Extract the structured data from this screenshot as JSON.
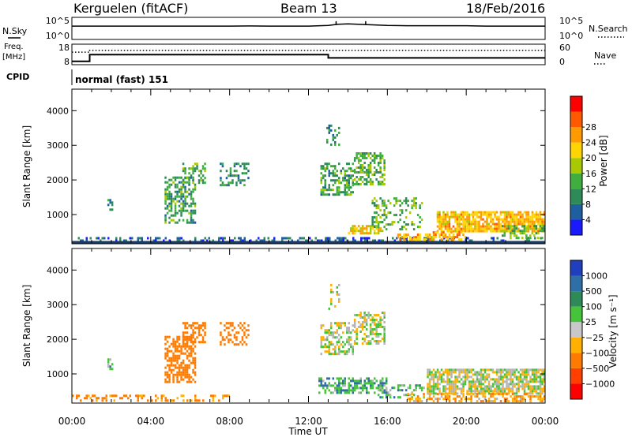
{
  "header": {
    "station": "Kerguelen (fitACF)",
    "beam": "Beam 13",
    "date": "18/Feb/2016"
  },
  "colors": {
    "power_scale": [
      "#1a1aff",
      "#1e5fa0",
      "#2e8b57",
      "#3fae3f",
      "#a8c800",
      "#ffd400",
      "#ff9a00",
      "#ff5a00",
      "#ff0000"
    ],
    "velocity_scale": [
      "#1f3fbf",
      "#2e6fa8",
      "#2e8b57",
      "#45c33a",
      "#c8c8c8",
      "#ffb000",
      "#ff7a00",
      "#ff4000",
      "#ff0000"
    ],
    "ground_scatter": "#b4b4b4"
  },
  "chart_data": [
    {
      "type": "line",
      "panel": "noise",
      "left_label": "N.Sky",
      "right_label": "N.Search",
      "left_ticks": [
        "10^5",
        "10^0"
      ],
      "right_ticks": [
        "10^5",
        "10^0"
      ],
      "series": [
        {
          "name": "N.Sky",
          "style": "solid",
          "x": [
            0,
            1,
            2,
            3,
            4,
            5,
            6,
            7,
            8,
            9,
            10,
            11,
            12,
            13,
            13.5,
            14,
            14.5,
            15,
            15.5,
            16,
            17,
            18,
            19,
            20,
            21,
            22,
            23,
            24
          ],
          "y": [
            3.1,
            3.1,
            3.1,
            3.1,
            3.1,
            3.1,
            3.1,
            3.1,
            3.1,
            3.15,
            3.1,
            3.1,
            3.1,
            3.3,
            3.6,
            3.7,
            3.6,
            3.5,
            3.4,
            3.3,
            3.2,
            3.2,
            3.2,
            3.2,
            3.1,
            3.1,
            3.1,
            3.1
          ]
        }
      ],
      "spikes_x": [
        13.4,
        14.9
      ]
    },
    {
      "type": "line",
      "panel": "frequency",
      "left_label": "Freq.",
      "left_unit": "[MHz]",
      "right_label": "Nave",
      "left_ticks": [
        18,
        8
      ],
      "right_ticks": [
        60,
        0
      ],
      "series": [
        {
          "name": "Freq",
          "style": "solid",
          "x": [
            0,
            0.9,
            0.9,
            13.0,
            13.0,
            24
          ],
          "y": [
            9.0,
            9.0,
            12.9,
            12.9,
            11.0,
            11.0
          ]
        },
        {
          "name": "Nave",
          "style": "dotted",
          "x": [
            0,
            0.9,
            0.9,
            24
          ],
          "y": [
            38,
            38,
            44,
            44
          ]
        }
      ]
    },
    {
      "type": "table",
      "panel": "cpid",
      "label": "CPID",
      "text": "normal (fast) 151"
    },
    {
      "type": "heatmap",
      "panel": "power",
      "xlabel": "",
      "ylabel": "Slant Range [km]",
      "xlim": [
        0,
        24
      ],
      "ylim": [
        180,
        4600
      ],
      "yticks": [
        1000,
        2000,
        3000,
        4000
      ],
      "colorbar_label": "Power [dB]",
      "colorbar_ticks": [
        "4",
        "8",
        "12",
        "16",
        "20",
        "24",
        "28"
      ],
      "clusters": [
        {
          "x": [
            0,
            24
          ],
          "y": [
            230,
            350
          ],
          "value": 6,
          "density": 0.35
        },
        {
          "x": [
            1.8,
            2.1
          ],
          "y": [
            1150,
            1450
          ],
          "value": 10,
          "density": 0.6
        },
        {
          "x": [
            4.7,
            6.3
          ],
          "y": [
            800,
            2100
          ],
          "value": 12,
          "density": 0.55
        },
        {
          "x": [
            5.6,
            6.8
          ],
          "y": [
            1900,
            2500
          ],
          "value": 14,
          "density": 0.45
        },
        {
          "x": [
            7.5,
            9.0
          ],
          "y": [
            1850,
            2500
          ],
          "value": 10,
          "density": 0.4
        },
        {
          "x": [
            12.6,
            14.3
          ],
          "y": [
            1600,
            2500
          ],
          "value": 12,
          "density": 0.5
        },
        {
          "x": [
            14.3,
            15.9
          ],
          "y": [
            1900,
            2800
          ],
          "value": 14,
          "density": 0.5
        },
        {
          "x": [
            12.9,
            13.6
          ],
          "y": [
            2900,
            3600
          ],
          "value": 10,
          "density": 0.3
        },
        {
          "x": [
            14.0,
            15.8
          ],
          "y": [
            450,
            700
          ],
          "value": 22,
          "density": 0.7
        },
        {
          "x": [
            15.2,
            17.8
          ],
          "y": [
            600,
            1500
          ],
          "value": 14,
          "density": 0.3
        },
        {
          "x": [
            16.5,
            18.5
          ],
          "y": [
            200,
            450
          ],
          "value": 24,
          "density": 0.6
        },
        {
          "x": [
            18.5,
            24.0
          ],
          "y": [
            500,
            1100
          ],
          "value": 24,
          "density": 0.8
        },
        {
          "x": [
            18.3,
            20.0
          ],
          "y": [
            280,
            520
          ],
          "value": 26,
          "density": 0.6
        },
        {
          "x": [
            21.8,
            24.0
          ],
          "y": [
            350,
            700
          ],
          "value": 14,
          "density": 0.5
        }
      ]
    },
    {
      "type": "heatmap",
      "panel": "velocity",
      "xlabel": "Time UT",
      "ylabel": "Slant Range [km]",
      "xlim": [
        0,
        24
      ],
      "ylim": [
        180,
        4600
      ],
      "yticks": [
        1000,
        2000,
        3000,
        4000
      ],
      "xticks": [
        "00:00",
        "04:00",
        "08:00",
        "12:00",
        "16:00",
        "20:00",
        "00:00"
      ],
      "colorbar_label": "Velocity [m s⁻¹]",
      "colorbar_ticks": [
        "1000",
        "500",
        "100",
        "25",
        "−25",
        "−100",
        "−500",
        "−1000"
      ],
      "clusters": [
        {
          "x": [
            0,
            8.0
          ],
          "y": [
            230,
            400
          ],
          "value": -120,
          "density": 0.35
        },
        {
          "x": [
            1.8,
            2.1
          ],
          "y": [
            1150,
            1450
          ],
          "value": 60,
          "density": 0.6
        },
        {
          "x": [
            4.7,
            6.3
          ],
          "y": [
            800,
            2100
          ],
          "value": -400,
          "density": 0.6
        },
        {
          "x": [
            5.6,
            6.8
          ],
          "y": [
            1900,
            2500
          ],
          "value": -300,
          "density": 0.5
        },
        {
          "x": [
            7.5,
            9.0
          ],
          "y": [
            1850,
            2500
          ],
          "value": -250,
          "density": 0.4
        },
        {
          "x": [
            12.6,
            14.3
          ],
          "y": [
            1600,
            2500
          ],
          "value": 0,
          "density": 0.5
        },
        {
          "x": [
            14.3,
            15.9
          ],
          "y": [
            1900,
            2800
          ],
          "value": 0,
          "density": 0.5
        },
        {
          "x": [
            12.9,
            13.6
          ],
          "y": [
            2900,
            3600
          ],
          "value": 0,
          "density": 0.25
        },
        {
          "x": [
            12.5,
            16.0
          ],
          "y": [
            450,
            900
          ],
          "value": 80,
          "density": 0.5
        },
        {
          "x": [
            15.5,
            18.0
          ],
          "y": [
            300,
            700
          ],
          "value": 60,
          "density": 0.4
        },
        {
          "x": [
            18.0,
            24.0
          ],
          "y": [
            450,
            1150
          ],
          "value": 0,
          "density": 0.75
        },
        {
          "x": [
            17.0,
            24.0
          ],
          "y": [
            230,
            450
          ],
          "value": -80,
          "density": 0.5
        }
      ]
    }
  ]
}
